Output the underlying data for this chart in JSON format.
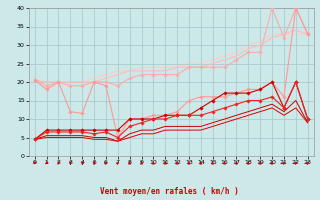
{
  "xlabel": "Vent moyen/en rafales ( km/h )",
  "background_color": "#cce8e8",
  "grid_color": "#aacccc",
  "xlim": [
    -0.5,
    23.5
  ],
  "ylim": [
    0,
    40
  ],
  "xticks": [
    0,
    1,
    2,
    3,
    4,
    5,
    6,
    7,
    8,
    9,
    10,
    11,
    12,
    13,
    14,
    15,
    16,
    17,
    18,
    19,
    20,
    21,
    22,
    23
  ],
  "yticks": [
    0,
    5,
    10,
    15,
    20,
    25,
    30,
    35,
    40
  ],
  "lines": [
    {
      "x": [
        0,
        1,
        2,
        3,
        4,
        5,
        6,
        7,
        8,
        9,
        10,
        11,
        12,
        13,
        14,
        15,
        16,
        17,
        18,
        19,
        20,
        21,
        22,
        23
      ],
      "y": [
        20.5,
        18,
        20,
        12,
        11.5,
        20,
        19,
        5,
        10,
        10,
        11,
        11,
        12,
        15,
        16,
        16,
        16,
        17,
        18,
        18,
        20,
        16,
        40,
        33
      ],
      "color": "#ff9999",
      "lw": 0.8,
      "marker": "D",
      "ms": 1.8,
      "zorder": 5
    },
    {
      "x": [
        0,
        1,
        2,
        3,
        4,
        5,
        6,
        7,
        8,
        9,
        10,
        11,
        12,
        13,
        14,
        15,
        16,
        17,
        18,
        19,
        20,
        21,
        22,
        23
      ],
      "y": [
        20.5,
        19,
        20,
        19,
        19,
        20,
        20,
        19,
        21,
        22,
        22,
        22,
        22,
        24,
        24,
        24,
        24,
        26,
        28,
        28,
        40,
        32,
        40,
        33
      ],
      "color": "#ffaaaa",
      "lw": 0.8,
      "marker": "D",
      "ms": 1.8,
      "zorder": 4
    },
    {
      "x": [
        0,
        1,
        2,
        3,
        4,
        5,
        6,
        7,
        8,
        9,
        10,
        11,
        12,
        13,
        14,
        15,
        16,
        17,
        18,
        19,
        20,
        21,
        22,
        23
      ],
      "y": [
        20.5,
        20,
        20,
        20,
        20,
        20,
        21,
        22,
        23,
        23,
        23,
        23,
        24,
        24,
        24,
        25,
        26,
        27,
        29,
        30,
        32,
        33,
        34,
        33
      ],
      "color": "#ffbbbb",
      "lw": 0.8,
      "marker": null,
      "ms": 0,
      "zorder": 2
    },
    {
      "x": [
        0,
        1,
        2,
        3,
        4,
        5,
        6,
        7,
        8,
        9,
        10,
        11,
        12,
        13,
        14,
        15,
        16,
        17,
        18,
        19,
        20,
        21,
        22,
        23
      ],
      "y": [
        20.5,
        20,
        20,
        20,
        20,
        21,
        22,
        23,
        23,
        24,
        24,
        24,
        24,
        25,
        25,
        26,
        27,
        28,
        30,
        31,
        33,
        33,
        33,
        33
      ],
      "color": "#ffcccc",
      "lw": 0.8,
      "marker": null,
      "ms": 0,
      "zorder": 1
    },
    {
      "x": [
        0,
        1,
        2,
        3,
        4,
        5,
        6,
        7,
        8,
        9,
        10,
        11,
        12,
        13,
        14,
        15,
        16,
        17,
        18,
        19,
        20,
        21,
        22,
        23
      ],
      "y": [
        4.5,
        7,
        7,
        7,
        7,
        7,
        7,
        7,
        10,
        10,
        10,
        11,
        11,
        11,
        13,
        15,
        17,
        17,
        17,
        18,
        20,
        13,
        20,
        10
      ],
      "color": "#cc0000",
      "lw": 0.8,
      "marker": "D",
      "ms": 1.8,
      "zorder": 6
    },
    {
      "x": [
        0,
        1,
        2,
        3,
        4,
        5,
        6,
        7,
        8,
        9,
        10,
        11,
        12,
        13,
        14,
        15,
        16,
        17,
        18,
        19,
        20,
        21,
        22,
        23
      ],
      "y": [
        4.5,
        6.5,
        6.5,
        6.5,
        6.5,
        6,
        6.5,
        5,
        8,
        9,
        10,
        10,
        11,
        11,
        11,
        12,
        13,
        14,
        15,
        15,
        16,
        13,
        20,
        10
      ],
      "color": "#ee2222",
      "lw": 0.8,
      "marker": "D",
      "ms": 1.8,
      "zorder": 6
    },
    {
      "x": [
        0,
        1,
        2,
        3,
        4,
        5,
        6,
        7,
        8,
        9,
        10,
        11,
        12,
        13,
        14,
        15,
        16,
        17,
        18,
        19,
        20,
        21,
        22,
        23
      ],
      "y": [
        4.5,
        5.5,
        5.5,
        5.5,
        5.5,
        5,
        5,
        4,
        6,
        7,
        7,
        8,
        8,
        8,
        8,
        9,
        10,
        11,
        12,
        13,
        14,
        12,
        15,
        9
      ],
      "color": "#cc0000",
      "lw": 0.7,
      "marker": null,
      "ms": 0,
      "zorder": 3
    },
    {
      "x": [
        0,
        1,
        2,
        3,
        4,
        5,
        6,
        7,
        8,
        9,
        10,
        11,
        12,
        13,
        14,
        15,
        16,
        17,
        18,
        19,
        20,
        21,
        22,
        23
      ],
      "y": [
        4.5,
        5,
        5,
        5,
        5,
        4.5,
        4.5,
        4,
        5,
        6,
        6,
        7,
        7,
        7,
        7,
        8,
        9,
        10,
        11,
        12,
        13,
        11,
        13,
        9
      ],
      "color": "#dd0000",
      "lw": 0.7,
      "marker": null,
      "ms": 0,
      "zorder": 3
    }
  ],
  "wind_arrows_x": [
    0,
    1,
    2,
    3,
    4,
    5,
    6,
    7,
    8,
    9,
    10,
    11,
    12,
    13,
    14,
    15,
    16,
    17,
    18,
    19,
    20,
    21,
    22,
    23
  ],
  "wind_angles_deg": [
    225,
    225,
    250,
    270,
    270,
    270,
    45,
    45,
    90,
    90,
    90,
    90,
    90,
    90,
    90,
    90,
    90,
    90,
    90,
    90,
    90,
    45,
    45,
    45
  ],
  "arrow_color": "#cc0000"
}
